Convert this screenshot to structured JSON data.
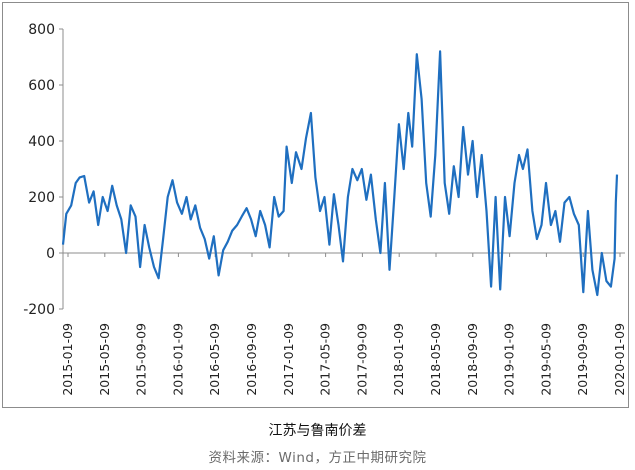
{
  "chart_data": {
    "type": "line",
    "title": "江苏与鲁南价差",
    "source": "资料来源：Wind，方正中期研究院",
    "ylim": [
      -200,
      800
    ],
    "yticks": [
      -200,
      0,
      200,
      400,
      600,
      800
    ],
    "xtick_labels": [
      "2015-01-09",
      "2015-05-09",
      "2015-09-09",
      "2016-01-09",
      "2016-05-09",
      "2016-09-09",
      "2017-01-09",
      "2017-05-09",
      "2017-09-09",
      "2018-01-09",
      "2018-05-09",
      "2018-09-09",
      "2019-01-09",
      "2019-05-09",
      "2019-09-09",
      "2020-01-09"
    ],
    "xlim": [
      "2015-01-09",
      "2020-01-09"
    ],
    "grid": false,
    "series_color": "#1f6fc0",
    "series": [
      {
        "points": [
          [
            "2015-01-09",
            30
          ],
          [
            "2015-01-20",
            140
          ],
          [
            "2015-02-05",
            170
          ],
          [
            "2015-02-20",
            250
          ],
          [
            "2015-03-05",
            270
          ],
          [
            "2015-03-20",
            275
          ],
          [
            "2015-04-05",
            180
          ],
          [
            "2015-04-20",
            220
          ],
          [
            "2015-05-05",
            100
          ],
          [
            "2015-05-20",
            200
          ],
          [
            "2015-06-05",
            150
          ],
          [
            "2015-06-20",
            240
          ],
          [
            "2015-07-05",
            170
          ],
          [
            "2015-07-20",
            120
          ],
          [
            "2015-08-05",
            0
          ],
          [
            "2015-08-20",
            170
          ],
          [
            "2015-09-05",
            130
          ],
          [
            "2015-09-20",
            -50
          ],
          [
            "2015-10-05",
            100
          ],
          [
            "2015-10-20",
            20
          ],
          [
            "2015-11-05",
            -50
          ],
          [
            "2015-11-20",
            -90
          ],
          [
            "2015-12-05",
            50
          ],
          [
            "2015-12-20",
            200
          ],
          [
            "2016-01-05",
            260
          ],
          [
            "2016-01-20",
            180
          ],
          [
            "2016-02-05",
            140
          ],
          [
            "2016-02-20",
            200
          ],
          [
            "2016-03-05",
            120
          ],
          [
            "2016-03-20",
            170
          ],
          [
            "2016-04-05",
            90
          ],
          [
            "2016-04-20",
            50
          ],
          [
            "2016-05-05",
            -20
          ],
          [
            "2016-05-20",
            60
          ],
          [
            "2016-06-05",
            -80
          ],
          [
            "2016-06-20",
            10
          ],
          [
            "2016-07-05",
            40
          ],
          [
            "2016-07-20",
            80
          ],
          [
            "2016-08-05",
            100
          ],
          [
            "2016-08-20",
            130
          ],
          [
            "2016-09-05",
            160
          ],
          [
            "2016-09-20",
            120
          ],
          [
            "2016-10-05",
            60
          ],
          [
            "2016-10-20",
            150
          ],
          [
            "2016-11-05",
            100
          ],
          [
            "2016-11-20",
            20
          ],
          [
            "2016-12-05",
            200
          ],
          [
            "2016-12-20",
            130
          ],
          [
            "2017-01-05",
            150
          ],
          [
            "2017-01-15",
            380
          ],
          [
            "2017-02-01",
            250
          ],
          [
            "2017-02-15",
            360
          ],
          [
            "2017-03-05",
            300
          ],
          [
            "2017-03-20",
            410
          ],
          [
            "2017-04-05",
            500
          ],
          [
            "2017-04-20",
            270
          ],
          [
            "2017-05-05",
            150
          ],
          [
            "2017-05-20",
            200
          ],
          [
            "2017-06-05",
            30
          ],
          [
            "2017-06-20",
            210
          ],
          [
            "2017-07-05",
            100
          ],
          [
            "2017-07-20",
            -30
          ],
          [
            "2017-08-05",
            200
          ],
          [
            "2017-08-20",
            300
          ],
          [
            "2017-09-05",
            260
          ],
          [
            "2017-09-20",
            300
          ],
          [
            "2017-10-05",
            190
          ],
          [
            "2017-10-20",
            280
          ],
          [
            "2017-11-05",
            120
          ],
          [
            "2017-11-20",
            0
          ],
          [
            "2017-12-05",
            250
          ],
          [
            "2017-12-20",
            -60
          ],
          [
            "2018-01-05",
            200
          ],
          [
            "2018-01-20",
            460
          ],
          [
            "2018-02-05",
            300
          ],
          [
            "2018-02-20",
            500
          ],
          [
            "2018-03-05",
            380
          ],
          [
            "2018-03-20",
            710
          ],
          [
            "2018-04-05",
            550
          ],
          [
            "2018-04-20",
            250
          ],
          [
            "2018-05-05",
            130
          ],
          [
            "2018-05-20",
            350
          ],
          [
            "2018-06-05",
            720
          ],
          [
            "2018-06-20",
            250
          ],
          [
            "2018-07-05",
            140
          ],
          [
            "2018-07-20",
            310
          ],
          [
            "2018-08-05",
            200
          ],
          [
            "2018-08-20",
            450
          ],
          [
            "2018-09-05",
            280
          ],
          [
            "2018-09-20",
            400
          ],
          [
            "2018-10-05",
            200
          ],
          [
            "2018-10-20",
            350
          ],
          [
            "2018-11-05",
            150
          ],
          [
            "2018-11-20",
            -120
          ],
          [
            "2018-12-05",
            200
          ],
          [
            "2018-12-20",
            -130
          ],
          [
            "2019-01-05",
            200
          ],
          [
            "2019-01-20",
            60
          ],
          [
            "2019-02-05",
            250
          ],
          [
            "2019-02-20",
            350
          ],
          [
            "2019-03-05",
            300
          ],
          [
            "2019-03-20",
            370
          ],
          [
            "2019-04-05",
            150
          ],
          [
            "2019-04-20",
            50
          ],
          [
            "2019-05-05",
            100
          ],
          [
            "2019-05-20",
            250
          ],
          [
            "2019-06-05",
            100
          ],
          [
            "2019-06-20",
            150
          ],
          [
            "2019-07-05",
            40
          ],
          [
            "2019-07-20",
            180
          ],
          [
            "2019-08-05",
            200
          ],
          [
            "2019-08-20",
            140
          ],
          [
            "2019-09-05",
            100
          ],
          [
            "2019-09-20",
            -140
          ],
          [
            "2019-10-05",
            150
          ],
          [
            "2019-10-20",
            -60
          ],
          [
            "2019-11-05",
            -150
          ],
          [
            "2019-11-20",
            0
          ],
          [
            "2019-12-05",
            -100
          ],
          [
            "2019-12-20",
            -120
          ],
          [
            "2020-01-01",
            -20
          ],
          [
            "2020-01-05",
            180
          ],
          [
            "2020-01-09",
            280
          ]
        ]
      }
    ]
  }
}
